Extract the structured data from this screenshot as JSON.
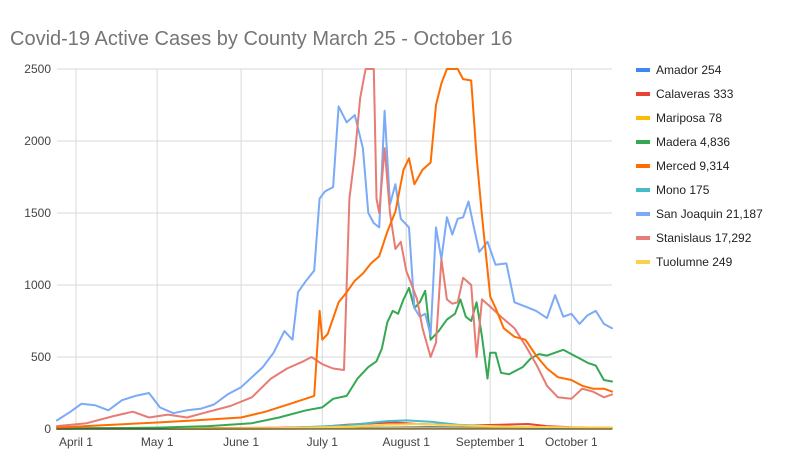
{
  "chart_data": {
    "type": "line",
    "title": "Covid-19 Active Cases by County March 25 - October 16",
    "xlabel": "",
    "ylabel": "",
    "ylim": [
      0,
      2500
    ],
    "yticks": [
      0,
      500,
      1000,
      1500,
      2000,
      2500
    ],
    "x_start": "2020-03-25",
    "x_end": "2020-10-16",
    "xticks": [
      {
        "date": "2020-04-01",
        "label": "April 1"
      },
      {
        "date": "2020-05-01",
        "label": "May 1"
      },
      {
        "date": "2020-06-01",
        "label": "June 1"
      },
      {
        "date": "2020-07-01",
        "label": "July 1"
      },
      {
        "date": "2020-08-01",
        "label": "August 1"
      },
      {
        "date": "2020-09-01",
        "label": "September 1"
      },
      {
        "date": "2020-10-01",
        "label": "October 1"
      }
    ],
    "grid": true,
    "legend_position": "right",
    "series": [
      {
        "name": "Amador 254",
        "color": "#4285f4",
        "points": [
          [
            "2020-03-25",
            2
          ],
          [
            "2020-04-15",
            3
          ],
          [
            "2020-05-15",
            3
          ],
          [
            "2020-06-15",
            4
          ],
          [
            "2020-07-10",
            6
          ],
          [
            "2020-07-25",
            10
          ],
          [
            "2020-08-10",
            14
          ],
          [
            "2020-08-25",
            10
          ],
          [
            "2020-09-15",
            6
          ],
          [
            "2020-10-01",
            5
          ],
          [
            "2020-10-16",
            5
          ]
        ]
      },
      {
        "name": "Calaveras 333",
        "color": "#ea4335",
        "points": [
          [
            "2020-03-25",
            5
          ],
          [
            "2020-04-15",
            6
          ],
          [
            "2020-05-15",
            6
          ],
          [
            "2020-06-15",
            8
          ],
          [
            "2020-07-01",
            15
          ],
          [
            "2020-07-10",
            30
          ],
          [
            "2020-07-20",
            40
          ],
          [
            "2020-07-28",
            45
          ],
          [
            "2020-08-05",
            35
          ],
          [
            "2020-08-15",
            30
          ],
          [
            "2020-08-25",
            25
          ],
          [
            "2020-09-05",
            30
          ],
          [
            "2020-09-15",
            35
          ],
          [
            "2020-09-22",
            20
          ],
          [
            "2020-10-01",
            12
          ],
          [
            "2020-10-16",
            8
          ]
        ]
      },
      {
        "name": "Mariposa 78",
        "color": "#fbbc04",
        "points": [
          [
            "2020-03-25",
            0
          ],
          [
            "2020-06-01",
            1
          ],
          [
            "2020-07-15",
            4
          ],
          [
            "2020-08-01",
            6
          ],
          [
            "2020-08-20",
            5
          ],
          [
            "2020-09-15",
            3
          ],
          [
            "2020-10-16",
            2
          ]
        ]
      },
      {
        "name": "Madera 4,836",
        "color": "#34a853",
        "points": [
          [
            "2020-03-25",
            2
          ],
          [
            "2020-04-10",
            5
          ],
          [
            "2020-05-01",
            10
          ],
          [
            "2020-05-20",
            20
          ],
          [
            "2020-06-05",
            40
          ],
          [
            "2020-06-15",
            80
          ],
          [
            "2020-06-25",
            130
          ],
          [
            "2020-07-01",
            150
          ],
          [
            "2020-07-05",
            210
          ],
          [
            "2020-07-10",
            230
          ],
          [
            "2020-07-14",
            350
          ],
          [
            "2020-07-18",
            430
          ],
          [
            "2020-07-21",
            470
          ],
          [
            "2020-07-23",
            560
          ],
          [
            "2020-07-25",
            740
          ],
          [
            "2020-07-27",
            820
          ],
          [
            "2020-07-29",
            800
          ],
          [
            "2020-07-31",
            900
          ],
          [
            "2020-08-02",
            980
          ],
          [
            "2020-08-04",
            840
          ],
          [
            "2020-08-06",
            880
          ],
          [
            "2020-08-08",
            960
          ],
          [
            "2020-08-10",
            620
          ],
          [
            "2020-08-13",
            680
          ],
          [
            "2020-08-16",
            760
          ],
          [
            "2020-08-19",
            800
          ],
          [
            "2020-08-21",
            900
          ],
          [
            "2020-08-23",
            780
          ],
          [
            "2020-08-25",
            750
          ],
          [
            "2020-08-27",
            880
          ],
          [
            "2020-08-29",
            640
          ],
          [
            "2020-08-31",
            350
          ],
          [
            "2020-09-01",
            530
          ],
          [
            "2020-09-03",
            530
          ],
          [
            "2020-09-05",
            390
          ],
          [
            "2020-09-08",
            380
          ],
          [
            "2020-09-10",
            400
          ],
          [
            "2020-09-13",
            430
          ],
          [
            "2020-09-16",
            490
          ],
          [
            "2020-09-19",
            520
          ],
          [
            "2020-09-22",
            510
          ],
          [
            "2020-09-25",
            530
          ],
          [
            "2020-09-28",
            550
          ],
          [
            "2020-10-01",
            520
          ],
          [
            "2020-10-04",
            490
          ],
          [
            "2020-10-07",
            460
          ],
          [
            "2020-10-10",
            440
          ],
          [
            "2020-10-13",
            340
          ],
          [
            "2020-10-16",
            330
          ]
        ]
      },
      {
        "name": "Merced 9,314",
        "color": "#ff6d01",
        "points": [
          [
            "2020-03-25",
            10
          ],
          [
            "2020-04-10",
            25
          ],
          [
            "2020-05-01",
            45
          ],
          [
            "2020-05-15",
            60
          ],
          [
            "2020-06-01",
            80
          ],
          [
            "2020-06-10",
            120
          ],
          [
            "2020-06-20",
            180
          ],
          [
            "2020-06-28",
            230
          ],
          [
            "2020-06-30",
            820
          ],
          [
            "2020-07-01",
            620
          ],
          [
            "2020-07-03",
            660
          ],
          [
            "2020-07-07",
            880
          ],
          [
            "2020-07-10",
            950
          ],
          [
            "2020-07-13",
            1030
          ],
          [
            "2020-07-16",
            1080
          ],
          [
            "2020-07-19",
            1150
          ],
          [
            "2020-07-22",
            1200
          ],
          [
            "2020-07-25",
            1370
          ],
          [
            "2020-07-28",
            1510
          ],
          [
            "2020-07-31",
            1800
          ],
          [
            "2020-08-02",
            1880
          ],
          [
            "2020-08-04",
            1700
          ],
          [
            "2020-08-07",
            1800
          ],
          [
            "2020-08-10",
            1850
          ],
          [
            "2020-08-12",
            2250
          ],
          [
            "2020-08-14",
            2400
          ],
          [
            "2020-08-16",
            2500
          ],
          [
            "2020-08-20",
            2500
          ],
          [
            "2020-08-22",
            2430
          ],
          [
            "2020-08-25",
            2420
          ],
          [
            "2020-08-27",
            1890
          ],
          [
            "2020-08-29",
            1480
          ],
          [
            "2020-09-01",
            920
          ],
          [
            "2020-09-03",
            840
          ],
          [
            "2020-09-06",
            700
          ],
          [
            "2020-09-10",
            640
          ],
          [
            "2020-09-14",
            620
          ],
          [
            "2020-09-18",
            510
          ],
          [
            "2020-09-22",
            420
          ],
          [
            "2020-09-26",
            360
          ],
          [
            "2020-10-01",
            340
          ],
          [
            "2020-10-05",
            300
          ],
          [
            "2020-10-09",
            280
          ],
          [
            "2020-10-13",
            280
          ],
          [
            "2020-10-16",
            260
          ]
        ]
      },
      {
        "name": "Mono 175",
        "color": "#46bdc6",
        "points": [
          [
            "2020-03-25",
            1
          ],
          [
            "2020-05-01",
            2
          ],
          [
            "2020-06-15",
            5
          ],
          [
            "2020-07-10",
            25
          ],
          [
            "2020-07-20",
            45
          ],
          [
            "2020-07-25",
            55
          ],
          [
            "2020-08-01",
            60
          ],
          [
            "2020-08-10",
            50
          ],
          [
            "2020-08-20",
            30
          ],
          [
            "2020-09-05",
            15
          ],
          [
            "2020-10-16",
            5
          ]
        ]
      },
      {
        "name": "San Joaquin 21,187",
        "color": "#7baaf7",
        "points": [
          [
            "2020-03-25",
            60
          ],
          [
            "2020-03-30",
            120
          ],
          [
            "2020-04-03",
            175
          ],
          [
            "2020-04-08",
            165
          ],
          [
            "2020-04-13",
            130
          ],
          [
            "2020-04-18",
            200
          ],
          [
            "2020-04-23",
            230
          ],
          [
            "2020-04-28",
            250
          ],
          [
            "2020-05-02",
            150
          ],
          [
            "2020-05-07",
            110
          ],
          [
            "2020-05-12",
            130
          ],
          [
            "2020-05-17",
            140
          ],
          [
            "2020-05-22",
            170
          ],
          [
            "2020-05-27",
            240
          ],
          [
            "2020-06-01",
            290
          ],
          [
            "2020-06-05",
            360
          ],
          [
            "2020-06-09",
            430
          ],
          [
            "2020-06-13",
            530
          ],
          [
            "2020-06-17",
            680
          ],
          [
            "2020-06-20",
            620
          ],
          [
            "2020-06-22",
            950
          ],
          [
            "2020-06-25",
            1030
          ],
          [
            "2020-06-28",
            1100
          ],
          [
            "2020-06-30",
            1600
          ],
          [
            "2020-07-02",
            1650
          ],
          [
            "2020-07-05",
            1680
          ],
          [
            "2020-07-07",
            2240
          ],
          [
            "2020-07-10",
            2130
          ],
          [
            "2020-07-13",
            2180
          ],
          [
            "2020-07-16",
            1950
          ],
          [
            "2020-07-18",
            1500
          ],
          [
            "2020-07-20",
            1430
          ],
          [
            "2020-07-22",
            1400
          ],
          [
            "2020-07-24",
            2210
          ],
          [
            "2020-07-26",
            1560
          ],
          [
            "2020-07-28",
            1700
          ],
          [
            "2020-07-30",
            1460
          ],
          [
            "2020-08-02",
            1400
          ],
          [
            "2020-08-04",
            840
          ],
          [
            "2020-08-06",
            780
          ],
          [
            "2020-08-08",
            800
          ],
          [
            "2020-08-10",
            650
          ],
          [
            "2020-08-12",
            1400
          ],
          [
            "2020-08-14",
            1180
          ],
          [
            "2020-08-16",
            1470
          ],
          [
            "2020-08-18",
            1350
          ],
          [
            "2020-08-20",
            1460
          ],
          [
            "2020-08-22",
            1470
          ],
          [
            "2020-08-24",
            1580
          ],
          [
            "2020-08-26",
            1400
          ],
          [
            "2020-08-28",
            1230
          ],
          [
            "2020-08-31",
            1300
          ],
          [
            "2020-09-03",
            1140
          ],
          [
            "2020-09-07",
            1150
          ],
          [
            "2020-09-10",
            880
          ],
          [
            "2020-09-14",
            850
          ],
          [
            "2020-09-18",
            820
          ],
          [
            "2020-09-22",
            770
          ],
          [
            "2020-09-25",
            930
          ],
          [
            "2020-09-28",
            780
          ],
          [
            "2020-10-01",
            800
          ],
          [
            "2020-10-04",
            730
          ],
          [
            "2020-10-07",
            790
          ],
          [
            "2020-10-10",
            820
          ],
          [
            "2020-10-13",
            730
          ],
          [
            "2020-10-16",
            700
          ]
        ]
      },
      {
        "name": "Stanislaus 17,292",
        "color": "#e67c73",
        "points": [
          [
            "2020-03-25",
            20
          ],
          [
            "2020-04-05",
            40
          ],
          [
            "2020-04-15",
            90
          ],
          [
            "2020-04-22",
            120
          ],
          [
            "2020-04-28",
            80
          ],
          [
            "2020-05-05",
            100
          ],
          [
            "2020-05-12",
            80
          ],
          [
            "2020-05-20",
            120
          ],
          [
            "2020-05-28",
            160
          ],
          [
            "2020-06-05",
            220
          ],
          [
            "2020-06-12",
            350
          ],
          [
            "2020-06-18",
            420
          ],
          [
            "2020-06-24",
            470
          ],
          [
            "2020-06-27",
            500
          ],
          [
            "2020-07-01",
            450
          ],
          [
            "2020-07-05",
            420
          ],
          [
            "2020-07-09",
            410
          ],
          [
            "2020-07-11",
            1600
          ],
          [
            "2020-07-13",
            1900
          ],
          [
            "2020-07-15",
            2300
          ],
          [
            "2020-07-17",
            2500
          ],
          [
            "2020-07-20",
            2500
          ],
          [
            "2020-07-21",
            1600
          ],
          [
            "2020-07-22",
            1500
          ],
          [
            "2020-07-24",
            1950
          ],
          [
            "2020-07-26",
            1500
          ],
          [
            "2020-07-28",
            1250
          ],
          [
            "2020-07-30",
            1300
          ],
          [
            "2020-08-01",
            1100
          ],
          [
            "2020-08-03",
            1000
          ],
          [
            "2020-08-05",
            900
          ],
          [
            "2020-08-07",
            700
          ],
          [
            "2020-08-10",
            500
          ],
          [
            "2020-08-12",
            600
          ],
          [
            "2020-08-14",
            1180
          ],
          [
            "2020-08-16",
            900
          ],
          [
            "2020-08-18",
            870
          ],
          [
            "2020-08-20",
            880
          ],
          [
            "2020-08-22",
            1050
          ],
          [
            "2020-08-25",
            1000
          ],
          [
            "2020-08-27",
            500
          ],
          [
            "2020-08-29",
            900
          ],
          [
            "2020-09-01",
            850
          ],
          [
            "2020-09-05",
            780
          ],
          [
            "2020-09-10",
            700
          ],
          [
            "2020-09-14",
            580
          ],
          [
            "2020-09-18",
            450
          ],
          [
            "2020-09-22",
            300
          ],
          [
            "2020-09-26",
            220
          ],
          [
            "2020-10-01",
            210
          ],
          [
            "2020-10-05",
            280
          ],
          [
            "2020-10-09",
            260
          ],
          [
            "2020-10-13",
            220
          ],
          [
            "2020-10-16",
            240
          ]
        ]
      },
      {
        "name": "Tuolumne 249",
        "color": "#fcd04f",
        "points": [
          [
            "2020-03-25",
            2
          ],
          [
            "2020-05-01",
            3
          ],
          [
            "2020-06-15",
            6
          ],
          [
            "2020-07-10",
            15
          ],
          [
            "2020-07-25",
            30
          ],
          [
            "2020-08-05",
            35
          ],
          [
            "2020-08-20",
            25
          ],
          [
            "2020-09-10",
            15
          ],
          [
            "2020-10-16",
            8
          ]
        ]
      }
    ]
  }
}
